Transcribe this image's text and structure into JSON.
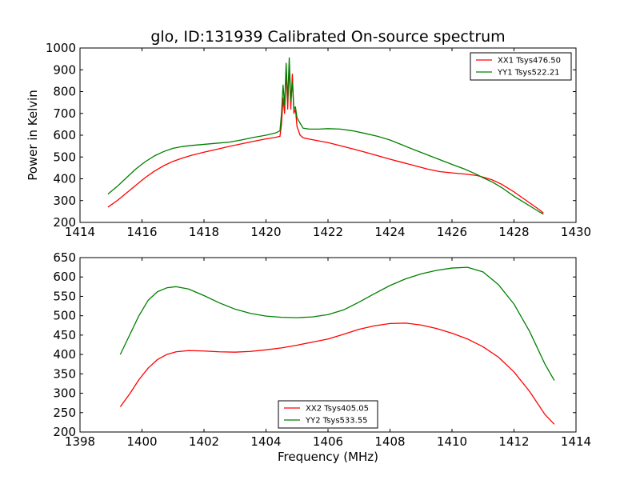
{
  "chart_data": [
    {
      "type": "line",
      "title": "glo, ID:131939 Calibrated On-source spectrum",
      "xlabel": "",
      "ylabel": "Power in Kelvin",
      "xlim": [
        1414,
        1430
      ],
      "ylim": [
        200,
        1000
      ],
      "xticks": [
        1414,
        1416,
        1418,
        1420,
        1422,
        1424,
        1426,
        1428,
        1430
      ],
      "yticks": [
        200,
        300,
        400,
        500,
        600,
        700,
        800,
        900,
        1000
      ],
      "legend_position": "top-right",
      "grid": false,
      "series": [
        {
          "name": "XX1 Tsys476.50",
          "color": "#ff0000",
          "x": [
            1414.9,
            1415.2,
            1415.5,
            1415.8,
            1416.1,
            1416.4,
            1416.7,
            1417.0,
            1417.3,
            1417.6,
            1418.0,
            1418.4,
            1418.8,
            1419.2,
            1419.6,
            1420.0,
            1420.3,
            1420.45,
            1420.5,
            1420.55,
            1420.6,
            1420.65,
            1420.7,
            1420.75,
            1420.8,
            1420.85,
            1420.9,
            1420.95,
            1421.0,
            1421.1,
            1421.2,
            1421.4,
            1421.7,
            1422.0,
            1422.4,
            1422.8,
            1423.2,
            1423.6,
            1424.0,
            1424.4,
            1424.8,
            1425.2,
            1425.6,
            1426.0,
            1426.4,
            1426.8,
            1427.0,
            1427.3,
            1427.6,
            1428.0,
            1428.4,
            1428.8,
            1428.95
          ],
          "y": [
            270,
            300,
            335,
            370,
            405,
            435,
            460,
            480,
            495,
            508,
            522,
            535,
            548,
            560,
            572,
            583,
            590,
            595,
            650,
            770,
            700,
            900,
            720,
            925,
            720,
            880,
            700,
            720,
            640,
            600,
            588,
            582,
            574,
            566,
            552,
            537,
            522,
            506,
            490,
            475,
            460,
            445,
            433,
            427,
            422,
            415,
            408,
            395,
            375,
            340,
            300,
            260,
            243
          ]
        },
        {
          "name": "YY1 Tsys522.21",
          "color": "#008000",
          "x": [
            1414.9,
            1415.2,
            1415.5,
            1415.8,
            1416.1,
            1416.4,
            1416.7,
            1417.0,
            1417.3,
            1417.6,
            1418.0,
            1418.4,
            1418.8,
            1419.2,
            1419.6,
            1420.0,
            1420.3,
            1420.45,
            1420.5,
            1420.55,
            1420.6,
            1420.65,
            1420.7,
            1420.75,
            1420.8,
            1420.85,
            1420.9,
            1420.95,
            1421.0,
            1421.1,
            1421.2,
            1421.4,
            1421.7,
            1422.0,
            1422.4,
            1422.8,
            1423.2,
            1423.6,
            1424.0,
            1424.4,
            1424.8,
            1425.2,
            1425.6,
            1426.0,
            1426.4,
            1426.8,
            1427.0,
            1427.3,
            1427.6,
            1428.0,
            1428.4,
            1428.8,
            1428.95
          ],
          "y": [
            330,
            365,
            405,
            445,
            478,
            505,
            525,
            540,
            548,
            553,
            558,
            563,
            568,
            578,
            590,
            600,
            610,
            620,
            700,
            830,
            740,
            930,
            760,
            955,
            760,
            840,
            720,
            730,
            680,
            655,
            632,
            628,
            628,
            630,
            628,
            620,
            608,
            595,
            578,
            555,
            532,
            510,
            488,
            466,
            445,
            420,
            405,
            385,
            360,
            320,
            285,
            250,
            238
          ]
        }
      ]
    },
    {
      "type": "line",
      "title": "",
      "xlabel": "Frequency (MHz)",
      "ylabel": "",
      "xlim": [
        1398,
        1414
      ],
      "ylim": [
        200,
        650
      ],
      "xticks": [
        1398,
        1400,
        1402,
        1404,
        1406,
        1408,
        1410,
        1412,
        1414
      ],
      "yticks": [
        200,
        250,
        300,
        350,
        400,
        450,
        500,
        550,
        600,
        650
      ],
      "legend_position": "bottom-center",
      "grid": false,
      "series": [
        {
          "name": "XX2 Tsys405.05",
          "color": "#ff0000",
          "x": [
            1399.3,
            1399.6,
            1399.9,
            1400.2,
            1400.5,
            1400.8,
            1401.1,
            1401.5,
            1402.0,
            1402.5,
            1403.0,
            1403.5,
            1404.0,
            1404.5,
            1405.0,
            1405.5,
            1406.0,
            1406.5,
            1407.0,
            1407.5,
            1408.0,
            1408.5,
            1409.0,
            1409.5,
            1410.0,
            1410.5,
            1411.0,
            1411.5,
            1412.0,
            1412.5,
            1413.0,
            1413.3
          ],
          "y": [
            265,
            298,
            335,
            365,
            387,
            400,
            407,
            410,
            409,
            407,
            406,
            408,
            412,
            417,
            424,
            432,
            440,
            452,
            465,
            474,
            480,
            481,
            476,
            467,
            455,
            440,
            420,
            393,
            355,
            305,
            245,
            220
          ]
        },
        {
          "name": "YY2 Tsys533.55",
          "color": "#008000",
          "x": [
            1399.3,
            1399.6,
            1399.9,
            1400.2,
            1400.5,
            1400.8,
            1401.1,
            1401.5,
            1402.0,
            1402.5,
            1403.0,
            1403.5,
            1404.0,
            1404.5,
            1405.0,
            1405.5,
            1406.0,
            1406.5,
            1407.0,
            1407.5,
            1408.0,
            1408.5,
            1409.0,
            1409.5,
            1410.0,
            1410.5,
            1411.0,
            1411.5,
            1412.0,
            1412.5,
            1413.0,
            1413.3
          ],
          "y": [
            400,
            450,
            500,
            540,
            562,
            572,
            575,
            569,
            552,
            533,
            517,
            506,
            499,
            496,
            495,
            497,
            503,
            515,
            535,
            557,
            578,
            595,
            608,
            617,
            623,
            625,
            613,
            580,
            530,
            460,
            375,
            333
          ]
        }
      ]
    }
  ]
}
